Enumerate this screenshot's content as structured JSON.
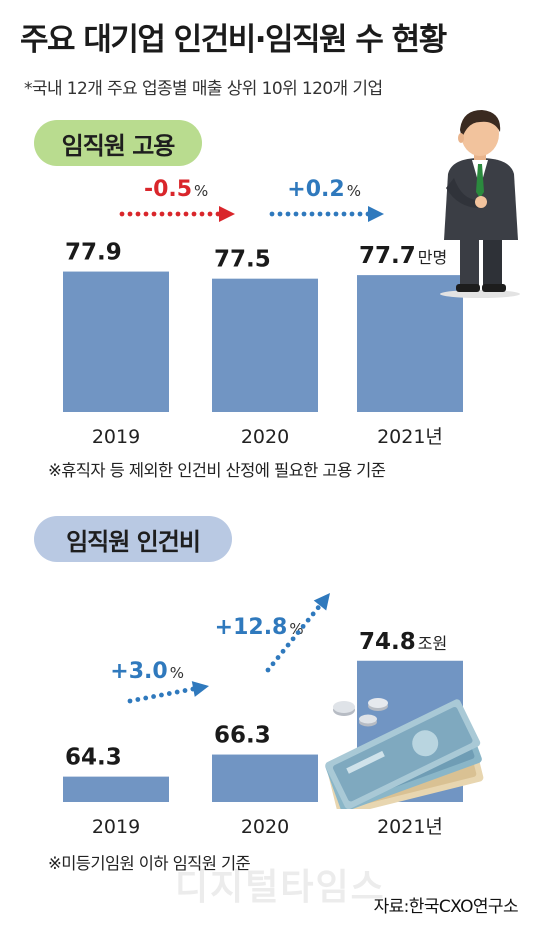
{
  "title": "주요 대기업 인건비·임직원 수 현황",
  "subtitle": "*국내 12개 주요 업종별 매출 상위 10위 120개 기업",
  "source": "자료:한국CXO연구소",
  "watermark": "디지털타임스",
  "colors": {
    "bar": "#7195c3",
    "decrease": "#d9262b",
    "increase": "#2f79bd",
    "pill_employment": "#b9dc8f",
    "pill_labor_cost": "#b9c9e3"
  },
  "chart_data": [
    {
      "type": "bar",
      "title": "임직원 고용",
      "categories": [
        "2019",
        "2020",
        "2021년"
      ],
      "values": [
        77.9,
        77.5,
        77.7
      ],
      "unit": "만명",
      "value_labels": [
        "77.9",
        "77.5",
        "77.7"
      ],
      "ylim": [
        70,
        79
      ],
      "changes": [
        {
          "label": "-0.5",
          "suffix": "%",
          "direction": "down"
        },
        {
          "label": "+0.2",
          "suffix": "%",
          "direction": "up"
        }
      ],
      "footnote": "※휴직자 등 제외한 인건비 산정에 필요한 고용 기준"
    },
    {
      "type": "bar",
      "title": "임직원 인건비",
      "categories": [
        "2019",
        "2020",
        "2021년"
      ],
      "values": [
        64.3,
        66.3,
        74.8
      ],
      "unit": "조원",
      "value_labels": [
        "64.3",
        "66.3",
        "74.8"
      ],
      "ylim": [
        62,
        76.5
      ],
      "changes": [
        {
          "label": "+3.0",
          "suffix": "%",
          "direction": "up"
        },
        {
          "label": "+12.8",
          "suffix": "%",
          "direction": "up"
        }
      ],
      "footnote": "※미등기임원 이하 임직원 기준"
    }
  ]
}
